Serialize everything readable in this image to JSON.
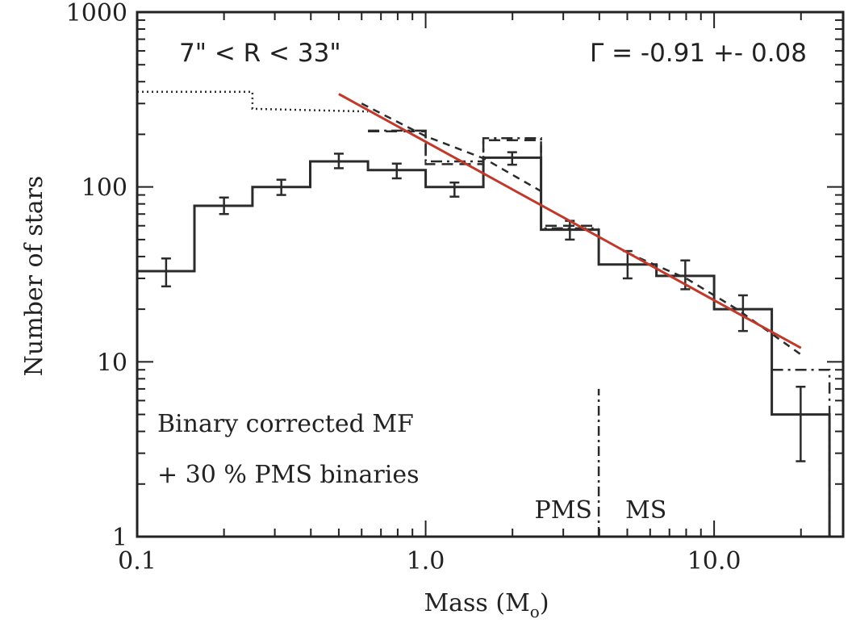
{
  "chart_data": {
    "type": "line",
    "title": "",
    "xlabel": "Mass (M",
    "xlabel_sub": "o",
    "xlabel_close": ")",
    "ylabel": "Number of stars",
    "xscale": "log",
    "yscale": "log",
    "xlim": [
      0.1,
      28
    ],
    "ylim": [
      1,
      1000
    ],
    "x_ticks": [
      {
        "value": 0.1,
        "label": "0.1"
      },
      {
        "value": 1.0,
        "label": "1.0"
      },
      {
        "value": 10.0,
        "label": "10.0"
      }
    ],
    "y_ticks": [
      {
        "value": 1,
        "label": "1"
      },
      {
        "value": 10,
        "label": "10"
      },
      {
        "value": 100,
        "label": "100"
      },
      {
        "value": 1000,
        "label": "1000"
      }
    ],
    "series": [
      {
        "style": "solid-histogram",
        "color": "#2b2b2b",
        "bin_edges": [
          0.1,
          0.158,
          0.251,
          0.398,
          0.631,
          1.0,
          1.585,
          2.512,
          3.981,
          6.31,
          10.0,
          15.85,
          25.12
        ],
        "values": [
          33,
          78,
          100,
          140,
          125,
          100,
          147,
          57,
          36,
          31,
          20,
          5
        ],
        "errors": [
          {
            "x": 0.126,
            "y": 32,
            "low": 27,
            "high": 39
          },
          {
            "x": 0.2,
            "y": 78,
            "low": 70,
            "high": 87
          },
          {
            "x": 0.316,
            "y": 100,
            "low": 90,
            "high": 110
          },
          {
            "x": 0.5,
            "y": 140,
            "low": 128,
            "high": 155
          },
          {
            "x": 0.794,
            "y": 124,
            "low": 112,
            "high": 136
          },
          {
            "x": 1.259,
            "y": 96,
            "low": 88,
            "high": 106
          },
          {
            "x": 1.995,
            "y": 145,
            "low": 134,
            "high": 158
          },
          {
            "x": 3.162,
            "y": 56,
            "low": 50,
            "high": 64
          },
          {
            "x": 5.012,
            "y": 36,
            "low": 30,
            "high": 43
          },
          {
            "x": 7.943,
            "y": 31,
            "low": 26,
            "high": 38
          },
          {
            "x": 12.59,
            "y": 19,
            "low": 15,
            "high": 24
          },
          {
            "x": 19.95,
            "y": 4.5,
            "low": 2.7,
            "high": 7.2
          }
        ]
      },
      {
        "style": "dotted-histogram",
        "color": "#2b2b2b",
        "points": [
          [
            0.1,
            350
          ],
          [
            0.251,
            350
          ],
          [
            0.251,
            280
          ],
          [
            0.631,
            270
          ]
        ]
      },
      {
        "style": "dashed-histogram",
        "color": "#2b2b2b",
        "bin_edges": [
          0.631,
          1.0,
          1.585,
          2.512,
          3.981
        ],
        "values": [
          208,
          135,
          185,
          60
        ]
      },
      {
        "style": "dash-dot-histogram",
        "color": "#2b2b2b",
        "bin_edges": [
          0.631,
          1.0,
          1.585,
          2.512,
          3.981
        ],
        "values": [
          210,
          140,
          190,
          58
        ]
      },
      {
        "style": "dash-dot-histogram",
        "color": "#2b2b2b",
        "bin_edges": [
          15.85,
          25.12
        ],
        "values": [
          9
        ]
      },
      {
        "style": "dashed-curve",
        "color": "#2b2b2b",
        "points": [
          [
            0.6,
            300
          ],
          [
            1.0,
            195
          ],
          [
            1.6,
            145
          ],
          [
            2.5,
            95
          ]
        ]
      },
      {
        "style": "dashed-curve",
        "color": "#2b2b2b",
        "points": [
          [
            5.0,
            42
          ],
          [
            8.0,
            30
          ],
          [
            12.0,
            20
          ],
          [
            20.0,
            11
          ]
        ]
      },
      {
        "style": "fit-line",
        "color": "#c0392b",
        "points": [
          [
            0.5,
            340
          ],
          [
            20.0,
            12
          ]
        ]
      },
      {
        "style": "boundary-dash-dot",
        "color": "#2b2b2b",
        "points": [
          [
            3.98,
            1
          ],
          [
            3.98,
            7
          ]
        ]
      }
    ],
    "annotations": {
      "radius_range": "7\" < R < 33\"",
      "slope": "Γ = -0.91 +- 0.08",
      "legend_line1": "Binary corrected MF",
      "legend_line2": "+ 30 % PMS binaries",
      "pms_label": "PMS",
      "ms_label": "MS"
    }
  }
}
